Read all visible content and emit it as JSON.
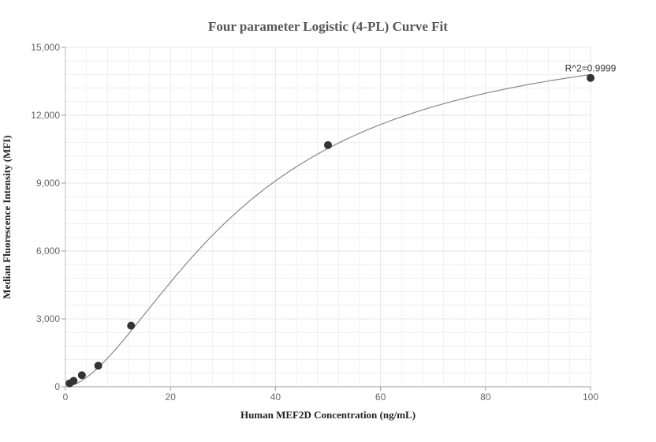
{
  "chart_data": {
    "type": "scatter",
    "title": "Four parameter Logistic (4-PL) Curve Fit",
    "xlabel": "Human MEF2D Concentration (ng/mL)",
    "ylabel": "Median Fluorescence Intensity (MFI)",
    "xlim": [
      0,
      100
    ],
    "ylim": [
      0,
      15000
    ],
    "x_ticks": [
      0,
      20,
      40,
      60,
      80,
      100
    ],
    "x_tick_labels": [
      "0",
      "20",
      "40",
      "60",
      "80",
      "100"
    ],
    "y_ticks": [
      0,
      3000,
      6000,
      9000,
      12000,
      15000
    ],
    "y_tick_labels": [
      "0",
      "3,000",
      "6,000",
      "9,000",
      "12,000",
      "15,000"
    ],
    "grid": true,
    "points": [
      {
        "x": 0.78,
        "y": 150
      },
      {
        "x": 1.56,
        "y": 260
      },
      {
        "x": 3.125,
        "y": 510
      },
      {
        "x": 6.25,
        "y": 930
      },
      {
        "x": 12.5,
        "y": 2700
      },
      {
        "x": 50,
        "y": 10680
      },
      {
        "x": 100,
        "y": 13650
      }
    ],
    "fit_curve": {
      "model": "4PL",
      "params": {
        "A": 0,
        "B": 1.7,
        "C": 34,
        "D": 16000
      }
    },
    "annotation": "R^2=0.9999",
    "colors": {
      "point": "#333333",
      "curve": "#888888",
      "grid": "#e6e6ef",
      "axis": "#c0c0c0"
    }
  }
}
